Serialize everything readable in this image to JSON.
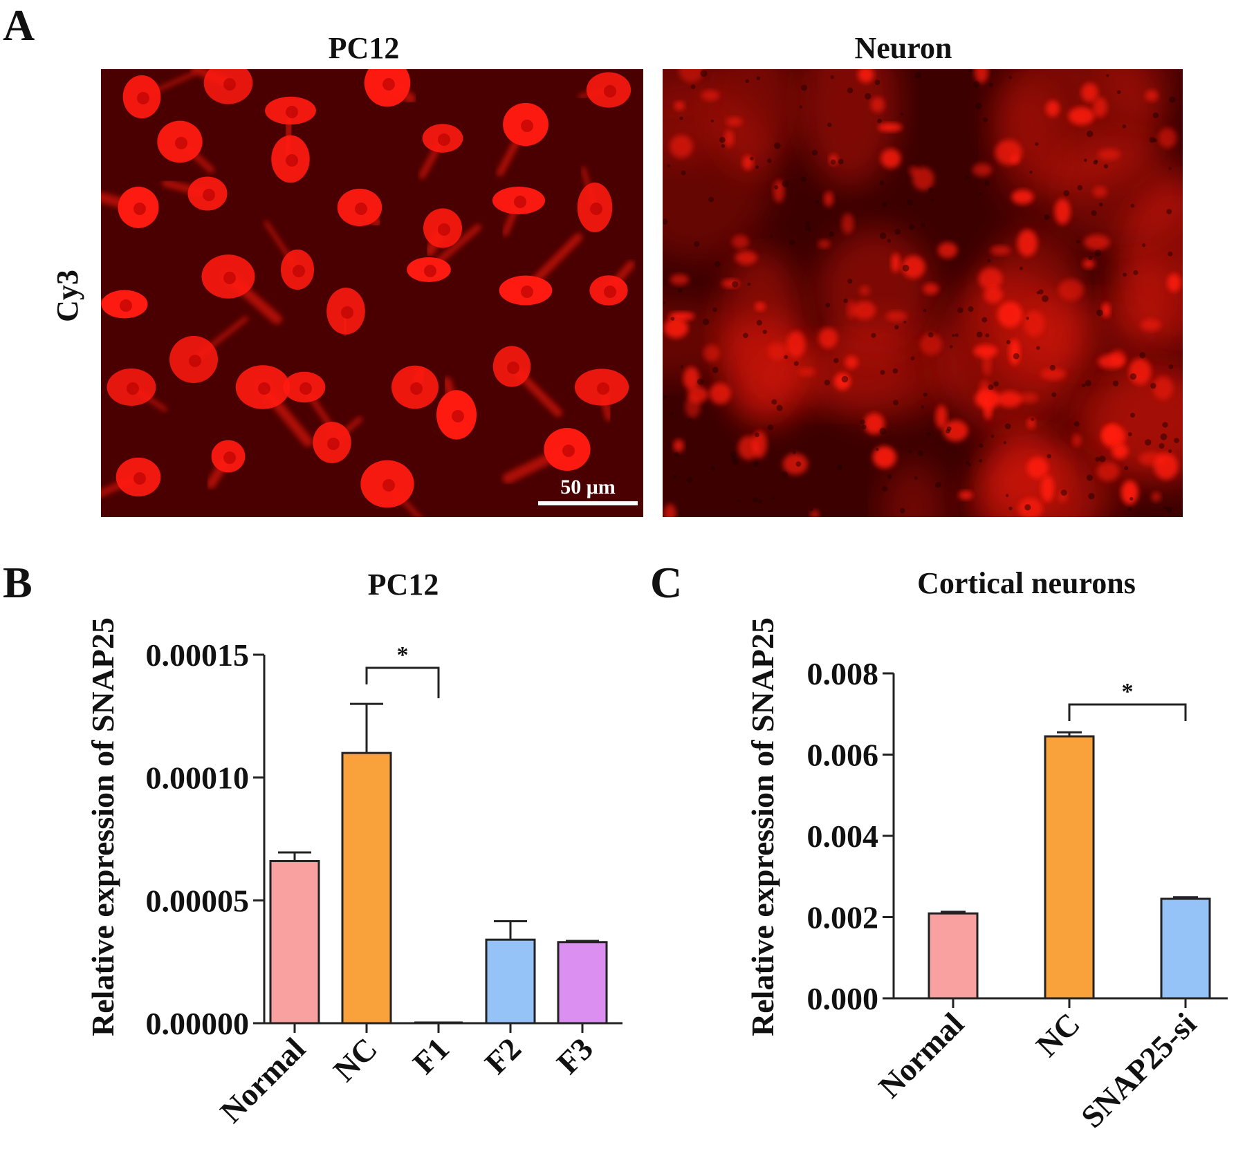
{
  "panels": {
    "A": {
      "letter": "A",
      "row_label": "Cy3",
      "images": [
        {
          "title": "PC12",
          "scale_bar": "50 μm"
        },
        {
          "title": "Neuron"
        }
      ],
      "colors": {
        "background": "#4a0000",
        "stain": "#ff1a10"
      }
    },
    "B": {
      "letter": "B"
    },
    "C": {
      "letter": "C"
    }
  },
  "chart_data": [
    {
      "type": "bar",
      "panel": "B",
      "title": "PC12",
      "ylabel": "Relative expression of SNAP25",
      "xlabel": "",
      "categories": [
        "Normal",
        "NC",
        "F1",
        "F2",
        "F3"
      ],
      "values": [
        6.6e-05,
        0.00011,
        0.0,
        3.4e-05,
        3.3e-05
      ],
      "errors": [
        3.5e-06,
        2e-05,
        0.0,
        7.5e-06,
        5e-07
      ],
      "colors": [
        "#f9a0a0",
        "#f9a23c",
        "#cccccc",
        "#96c3f7",
        "#db8ff0"
      ],
      "ylim": [
        0,
        0.00015
      ],
      "yticks": [
        0,
        5e-05,
        0.0001,
        0.00015
      ],
      "ytick_labels": [
        "0.00000",
        "0.00005",
        "0.00010",
        "0.00015"
      ],
      "significance": [
        {
          "from": "NC",
          "to": "F1",
          "label": "*"
        }
      ]
    },
    {
      "type": "bar",
      "panel": "C",
      "title": "Cortical neurons",
      "ylabel": "Relative expression of SNAP25",
      "xlabel": "",
      "categories": [
        "Normal",
        "NC",
        "SNAP25-si"
      ],
      "values": [
        0.00209,
        0.00645,
        0.00245
      ],
      "errors": [
        4e-05,
        0.0001,
        4e-05
      ],
      "colors": [
        "#f9a0a0",
        "#f9a23c",
        "#96c3f7"
      ],
      "ylim": [
        0,
        0.008
      ],
      "yticks": [
        0,
        0.002,
        0.004,
        0.006,
        0.008
      ],
      "ytick_labels": [
        "0.000",
        "0.002",
        "0.004",
        "0.006",
        "0.008"
      ],
      "significance": [
        {
          "from": "NC",
          "to": "SNAP25-si",
          "label": "*"
        }
      ]
    }
  ]
}
